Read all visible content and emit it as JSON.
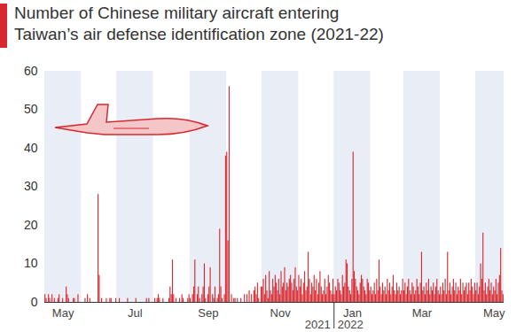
{
  "chart_data": {
    "type": "bar",
    "title": "Number of Chinese military aircraft entering Taiwan’s air defense identification zone (2021-22)",
    "categories": [
      null,
      null,
      null,
      null,
      null,
      null,
      null,
      null,
      null,
      null,
      null,
      null,
      null,
      null,
      null,
      "May",
      null,
      null,
      null,
      null,
      null,
      null,
      null,
      null,
      null,
      null,
      null,
      null,
      null,
      null,
      null,
      null,
      null,
      null,
      null,
      null,
      null,
      null,
      null,
      null,
      null,
      null,
      null,
      null,
      null,
      null,
      null,
      null,
      null,
      null,
      null,
      null,
      null,
      null,
      null,
      null,
      null,
      null,
      null,
      null,
      null,
      null,
      null,
      null,
      null,
      null,
      null,
      null,
      null,
      null,
      null,
      null,
      null,
      null,
      null,
      null,
      "Jul",
      null,
      null,
      null,
      null,
      null,
      null,
      null,
      null,
      null,
      null,
      null,
      null,
      null,
      null,
      null,
      null,
      null,
      null,
      null,
      null,
      null,
      null,
      null,
      null,
      null,
      null,
      null,
      null,
      null,
      null,
      null,
      null,
      null,
      null,
      null,
      null,
      null,
      null,
      null,
      null,
      null,
      null,
      null,
      null,
      null,
      null,
      null,
      null,
      null,
      null,
      null,
      null,
      null,
      null,
      null,
      null,
      null,
      null,
      null,
      null,
      null,
      "Sep",
      null,
      null,
      null,
      null,
      null,
      null,
      null,
      null,
      null,
      null,
      null,
      null,
      null,
      null,
      null,
      null,
      null,
      null,
      null,
      null,
      null,
      null,
      null,
      null,
      null,
      null,
      null,
      null,
      null,
      null,
      null,
      null,
      null,
      null,
      null,
      null,
      null,
      null,
      null,
      null,
      null,
      null,
      null,
      null,
      null,
      null,
      null,
      null,
      null,
      null,
      null,
      null,
      null,
      null,
      null,
      null,
      null,
      null,
      null,
      null,
      "Nov",
      null,
      null,
      null,
      null,
      null,
      null,
      null,
      null,
      null,
      null,
      null,
      null,
      null,
      null,
      null,
      null,
      null,
      null,
      null,
      null,
      null,
      null,
      null,
      null,
      null,
      null,
      null,
      null,
      null,
      null,
      null,
      null,
      null,
      null,
      null,
      null,
      null,
      null,
      null,
      null,
      null,
      null,
      null,
      null,
      null,
      null,
      null,
      null,
      null,
      null,
      null,
      null,
      null,
      null,
      null,
      null,
      null,
      null,
      null,
      null,
      "Jan",
      null,
      null,
      null,
      null,
      null,
      null,
      null,
      null,
      null,
      null,
      null,
      null,
      null,
      null,
      null,
      null,
      null,
      null,
      null,
      null,
      null,
      null,
      null,
      null,
      null,
      null,
      null,
      null,
      null,
      null,
      null,
      null,
      null,
      null,
      null,
      null,
      null,
      null,
      null,
      null,
      null,
      null,
      null,
      null,
      null,
      null,
      null,
      null,
      null,
      null,
      null,
      null,
      null,
      null,
      null,
      null,
      null,
      null,
      "Mar",
      null,
      null,
      null,
      null,
      null,
      null,
      null,
      null,
      null,
      null,
      null,
      null,
      null,
      null,
      null,
      null,
      null,
      null,
      null,
      null,
      null,
      null,
      null,
      null,
      null,
      null,
      null,
      null,
      null,
      null,
      null,
      null,
      null,
      null,
      null,
      null,
      null,
      null,
      null,
      null,
      null,
      null,
      null,
      null,
      null,
      null,
      null,
      null,
      null,
      null,
      null,
      null,
      null,
      null,
      null,
      null,
      null,
      null,
      null,
      null,
      "May",
      null,
      null,
      null,
      null,
      null,
      null,
      null,
      null
    ],
    "values": [
      2,
      1,
      0,
      2,
      1,
      0,
      2,
      0,
      1,
      0,
      0,
      1,
      2,
      0,
      0,
      1,
      0,
      0,
      4,
      2,
      1,
      0,
      0,
      0,
      1,
      1,
      0,
      0,
      2,
      0,
      0,
      0,
      0,
      0,
      1,
      0,
      2,
      0,
      1,
      0,
      0,
      0,
      0,
      0,
      0,
      28,
      7,
      0,
      1,
      0,
      0,
      0,
      1,
      0,
      0,
      1,
      1,
      0,
      0,
      0,
      1,
      0,
      0,
      1,
      0,
      0,
      0,
      0,
      0,
      0,
      1,
      0,
      0,
      0,
      0,
      0,
      0,
      1,
      0,
      0,
      0,
      0,
      0,
      0,
      0,
      0,
      1,
      0,
      1,
      0,
      0,
      0,
      0,
      1,
      0,
      1,
      2,
      1,
      0,
      0,
      1,
      0,
      0,
      0,
      0,
      1,
      4,
      2,
      11,
      2,
      0,
      1,
      0,
      0,
      1,
      0,
      2,
      1,
      0,
      0,
      0,
      1,
      2,
      1,
      0,
      2,
      4,
      11,
      0,
      2,
      4,
      1,
      0,
      2,
      4,
      10,
      1,
      0,
      2,
      4,
      9,
      0,
      2,
      1,
      4,
      0,
      1,
      2,
      19,
      4,
      1,
      0,
      2,
      38,
      39,
      16,
      56,
      0,
      2,
      0,
      1,
      1,
      0,
      1,
      0,
      0,
      1,
      0,
      0,
      2,
      0,
      2,
      0,
      3,
      0,
      2,
      0,
      3,
      4,
      2,
      5,
      1,
      0,
      4,
      4,
      6,
      2,
      7,
      3,
      1,
      8,
      3,
      2,
      6,
      4,
      7,
      5,
      3,
      6,
      2,
      8,
      4,
      5,
      9,
      3,
      5,
      4,
      6,
      7,
      5,
      3,
      6,
      9,
      4,
      3,
      7,
      4,
      6,
      2,
      5,
      8,
      3,
      4,
      13,
      6,
      2,
      5,
      4,
      7,
      3,
      6,
      2,
      5,
      8,
      4,
      2,
      3,
      6,
      2,
      4,
      7,
      5,
      3,
      2,
      6,
      2,
      4,
      3,
      6,
      5,
      3,
      2,
      7,
      4,
      5,
      11,
      10,
      4,
      3,
      2,
      6,
      39,
      8,
      6,
      4,
      3,
      2,
      5,
      7,
      6,
      4,
      3,
      2,
      6,
      5,
      3,
      4,
      2,
      3,
      5,
      2,
      6,
      3,
      11,
      4,
      2,
      5,
      3,
      4,
      2,
      6,
      3,
      5,
      2,
      4,
      7,
      3,
      2,
      5,
      3,
      4,
      2,
      3,
      6,
      3,
      5,
      2,
      4,
      6,
      3,
      2,
      5,
      4,
      2,
      3,
      6,
      4,
      2,
      5,
      13,
      3,
      4,
      2,
      5,
      3,
      6,
      2,
      4,
      3,
      5,
      2,
      4,
      6,
      3,
      2,
      4,
      2,
      5,
      3,
      6,
      2,
      13,
      3,
      5,
      2,
      4,
      6,
      3,
      5,
      2,
      4,
      3,
      6,
      2,
      5,
      3,
      4,
      5,
      2,
      5,
      3,
      6,
      4,
      2,
      5,
      3,
      5,
      2,
      4,
      10,
      6,
      18,
      3,
      5,
      2,
      4,
      6,
      3,
      5,
      2,
      4,
      3,
      6,
      2,
      5,
      7,
      14,
      3,
      2
    ],
    "color": "#d8282f",
    "ylim": [
      0,
      60
    ],
    "yticks": [
      0,
      10,
      20,
      30,
      40,
      50,
      60
    ],
    "grid": false,
    "annotations": [
      "2021",
      "2022"
    ]
  }
}
